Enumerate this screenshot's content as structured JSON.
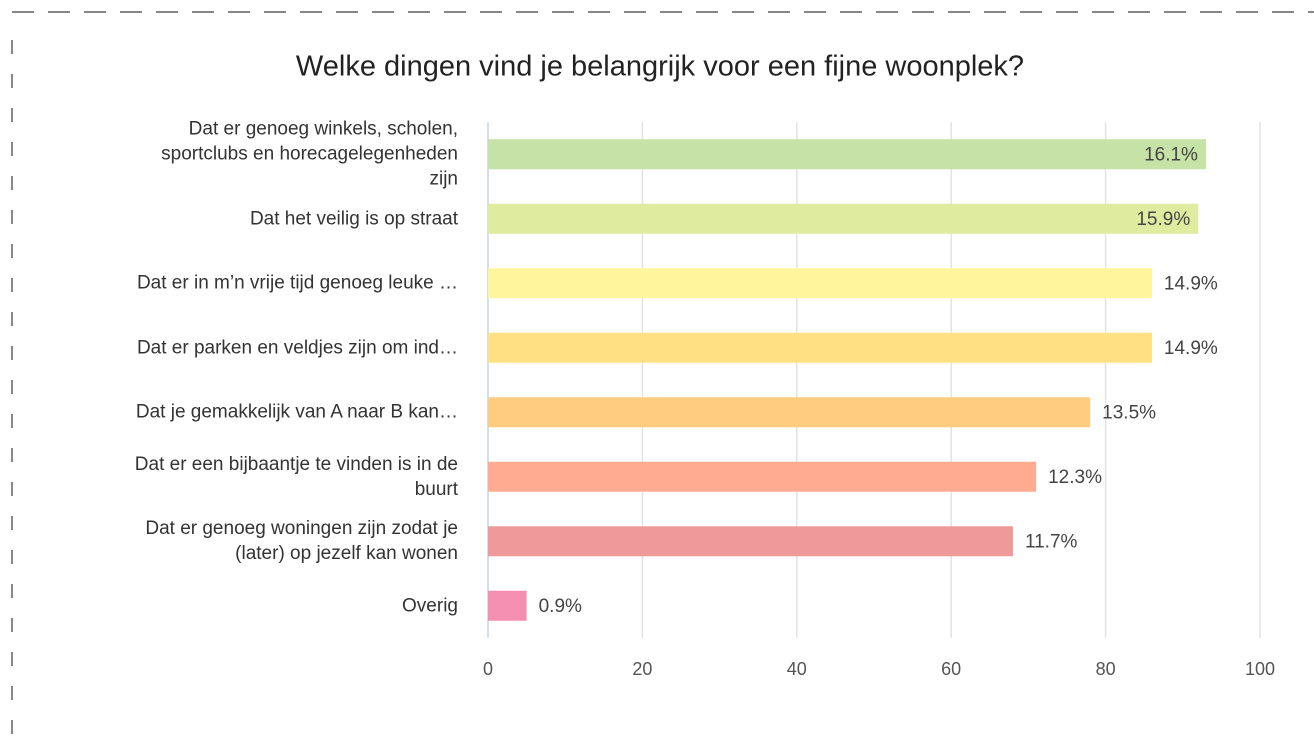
{
  "chart_data": {
    "type": "bar",
    "orientation": "horizontal",
    "title": "Welke dingen vind je belangrijk voor een fijne woonplek?",
    "categories": [
      "Dat er genoeg winkels, scholen,\nsportclubs en horecagelegenheden\nzijn",
      "Dat het veilig is op straat",
      "Dat er in m’n vrije tijd genoeg leuke …",
      "Dat er parken en veldjes zijn om ind…",
      "Dat je gemakkelijk van A naar B kan…",
      "Dat er een bijbaantje te vinden is in de\nbuurt",
      "Dat er genoeg woningen zijn zodat je\n(later) op jezelf kan wonen",
      "Overig"
    ],
    "values": [
      93,
      92,
      86,
      86,
      78,
      71,
      68,
      5
    ],
    "value_labels": [
      "16.1%",
      "15.9%",
      "14.9%",
      "14.9%",
      "13.5%",
      "12.3%",
      "11.7%",
      "0.9%"
    ],
    "colors": [
      "#c7e2a6",
      "#dfeca0",
      "#fff59d",
      "#ffe082",
      "#ffcc80",
      "#ffab91",
      "#ef9a9a",
      "#f48fb1"
    ],
    "xlim": [
      0,
      100
    ],
    "xticks": [
      0,
      20,
      40,
      60,
      80,
      100
    ],
    "grid": true
  }
}
